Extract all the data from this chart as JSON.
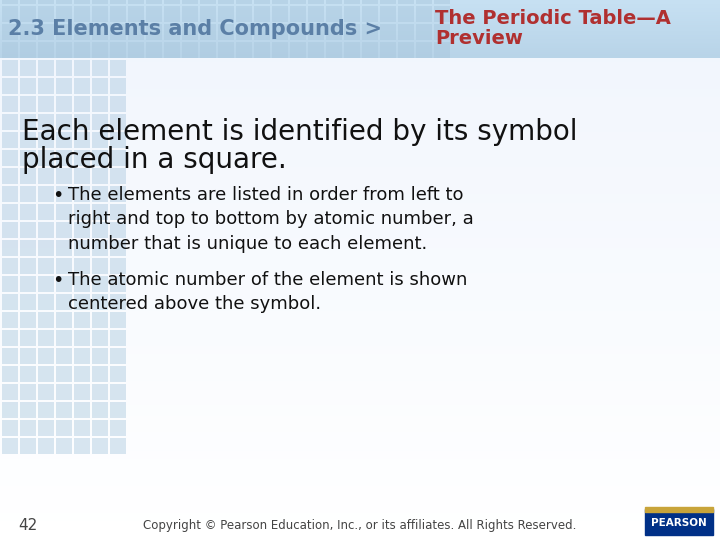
{
  "header_left_text": "2.3 Elements and Compounds >",
  "header_left_color": "#5b7fa6",
  "header_right_line1": "The Periodic Table—A",
  "header_right_line2": "Preview",
  "header_right_color": "#b03030",
  "title_line1": "Each element is identified by its symbol",
  "title_line2": "placed in a square.",
  "title_color": "#111111",
  "bullet1": "The elements are listed in order from left to\nright and top to bottom by atomic number, a\nnumber that is unique to each element.",
  "bullet2": "The atomic number of the element is shown\ncentered above the symbol.",
  "bullet_color": "#111111",
  "footer_num": "42",
  "footer_copy": "Copyright © Pearson Education, Inc., or its affiliates. All Rights Reserved.",
  "footer_color": "#444444",
  "grid_color": "#aac8de",
  "header_bg": "#b8d4e8",
  "main_bg_top": "#cce0ef",
  "main_bg_bottom": "#f0f8ff",
  "pearson_blue": "#003087",
  "pearson_gold": "#c8a43a"
}
